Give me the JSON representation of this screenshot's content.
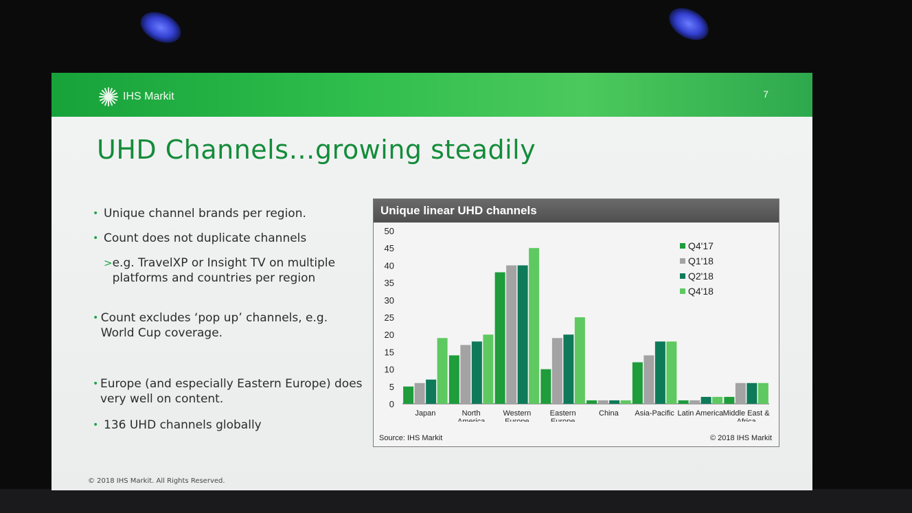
{
  "slide": {
    "logo_text": "IHS Markit",
    "page_number": "7",
    "title": "UHD Channels…growing steadily",
    "bullets": [
      "Unique channel brands per region.",
      "Count does not duplicate channels",
      "e.g. TravelXP or Insight TV on multiple platforms and countries per region",
      "Count excludes ‘pop up’ channels, e.g. World Cup coverage.",
      "Europe (and especially Eastern Europe) does very well on content.",
      "136 UHD channels globally"
    ],
    "copyright": "© 2018 IHS Markit. All Rights Reserved.",
    "chart_source": "Source: IHS Markit",
    "chart_copyright": "© 2018 IHS Markit"
  },
  "chart_data": {
    "type": "bar",
    "title": "Unique linear UHD channels",
    "categories": [
      "Japan",
      "North America",
      "Western Europe",
      "Eastern Europe",
      "China",
      "Asia-Pacific",
      "Latin America",
      "Middle East & Africa"
    ],
    "ylim": [
      0,
      50
    ],
    "yticks": [
      0,
      5,
      10,
      15,
      20,
      25,
      30,
      35,
      40,
      45,
      50
    ],
    "legend_position": "top-right",
    "grid": false,
    "series": [
      {
        "name": "Q4'17",
        "color": "#1f9c3c",
        "values": [
          5,
          14,
          38,
          10,
          1,
          12,
          1,
          2
        ]
      },
      {
        "name": "Q1'18",
        "color": "#a3a3a3",
        "values": [
          6,
          17,
          40,
          19,
          1,
          14,
          1,
          6
        ]
      },
      {
        "name": "Q2'18",
        "color": "#0e7a5a",
        "values": [
          7,
          18,
          40,
          20,
          1,
          18,
          2,
          6
        ]
      },
      {
        "name": "Q4'18",
        "color": "#5ec960",
        "values": [
          19,
          20,
          45,
          25,
          1,
          18,
          2,
          6
        ]
      }
    ]
  }
}
